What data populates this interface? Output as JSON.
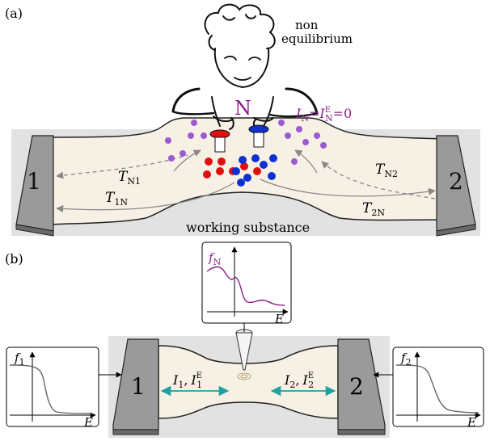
{
  "panel_a": {
    "tag": "(a)",
    "demon_note_line1": "non",
    "demon_note_line2": "equilibrium",
    "demon_label": "N",
    "condition": {
      "I": "I",
      "sub_N": "N",
      "eq1": "=",
      "sup_E": "E",
      "sub_N2": "N",
      "eq2": "=0"
    },
    "terminal_left": "1",
    "terminal_right": "2",
    "t_N1": {
      "T": "T",
      "sub": "N1"
    },
    "t_1N": {
      "T": "T",
      "sub": "1N"
    },
    "t_N2": {
      "T": "T",
      "sub": "N2"
    },
    "t_2N": {
      "T": "T",
      "sub": "2N"
    },
    "caption": "working substance"
  },
  "panel_b": {
    "tag": "(b)",
    "terminal_left": "1",
    "terminal_right": "2",
    "current_left": {
      "I1": "I",
      "s1": "1",
      "comma": ",",
      "I2": "I",
      "sup": "E",
      "s2": "1"
    },
    "current_right": {
      "I1": "I",
      "s1": "2",
      "comma": ",",
      "I2": "I",
      "sup": "E",
      "s2": "2"
    },
    "inset_N": {
      "f": "f",
      "sub": "N",
      "axis": "E"
    },
    "inset_1": {
      "f": "f",
      "sub": "1",
      "axis": "E"
    },
    "inset_2": {
      "f": "f",
      "sub": "2",
      "axis": "E"
    }
  },
  "colors": {
    "demon": "#8b1f8b",
    "red_particle": "#e01010",
    "blue_particle": "#1030d0",
    "purple_particle": "#9a5ad0",
    "arrow_teal": "#20a0a0",
    "substance": "#f7f1e5",
    "background": "#e2e2e2",
    "terminal": "#9a9a9a"
  }
}
